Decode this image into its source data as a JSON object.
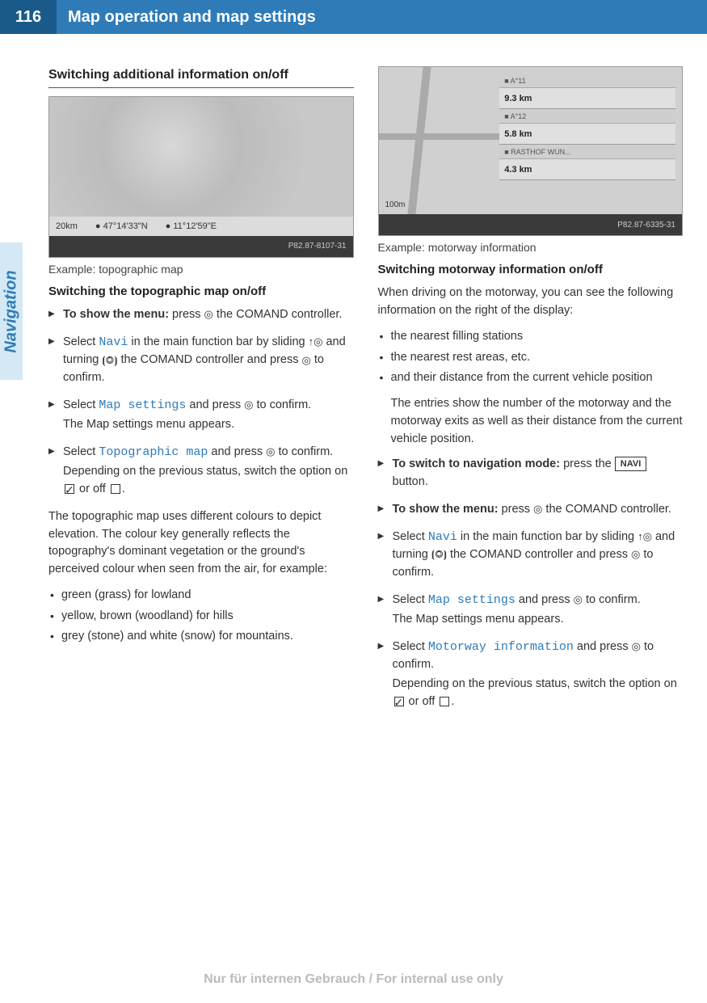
{
  "header": {
    "page_number": "116",
    "title": "Map operation and map settings"
  },
  "side_tab": "Navigation",
  "left": {
    "section_title": "Switching additional information on/off",
    "figure": {
      "coords_left": "● 47°14'33\"N",
      "coords_right": "● 11°12'59\"E",
      "scale": "20km",
      "id_label": "P82.87-8107-31"
    },
    "caption": "Example: topographic map",
    "sub_title": "Switching the topographic map on/off",
    "steps": [
      {
        "html": "<b>To show the menu:</b> press <span class='sym'>◎</span> the COMAND controller."
      },
      {
        "html": "Select <span class='cmd'>Navi</span> in the main function bar by sliding <span class='sym'>↑◎</span> and turning <span class='sym'>⦗◎⦘</span> the COMAND controller and press <span class='sym'>◎</span> to confirm."
      },
      {
        "html": "Select <span class='cmd'>Map settings</span> and press <span class='sym'>◎</span> to confirm.<span class='sub-line'>The Map settings menu appears.</span>"
      },
      {
        "html": "Select <span class='cmd'>Topographic map</span> and press <span class='sym'>◎</span> to confirm.<span class='sub-line'>Depending on the previous status, switch the option on <span class='box checked'></span> or off <span class='box'></span>.</span>"
      }
    ],
    "body_text": "The topographic map uses different colours to depict elevation. The colour key generally reflects the topography's dominant vegetation or the ground's perceived colour when seen from the air, for example:",
    "bullets": [
      "green (grass) for lowland",
      "yellow, brown (woodland) for hills",
      "grey (stone) and white (snow) for mountains."
    ]
  },
  "right": {
    "figure": {
      "rows": [
        {
          "label": "A°11",
          "dist": "9.3 km"
        },
        {
          "label": "A°12",
          "dist": "5.8 km"
        },
        {
          "label": "RASTHOF WUN...",
          "dist": "4.3 km"
        }
      ],
      "scale": "100m",
      "id_label": "P82.87-6335-31"
    },
    "caption": "Example: motorway information",
    "sub_title": "Switching motorway information on/off",
    "intro": "When driving on the motorway, you can see the following information on the right of the display:",
    "bullets": [
      "the nearest filling stations",
      "the nearest rest areas, etc.",
      "and their distance from the current vehicle position"
    ],
    "bullets_trail": "The entries show the number of the motorway and the motorway exits as well as their distance from the current vehicle position.",
    "steps": [
      {
        "html": "<b>To switch to navigation mode:</b> press the <span class='btn-box'>NAVI</span> button."
      },
      {
        "html": "<b>To show the menu:</b> press <span class='sym'>◎</span> the COMAND controller."
      },
      {
        "html": "Select <span class='cmd'>Navi</span> in the main function bar by sliding <span class='sym'>↑◎</span> and turning <span class='sym'>⦗◎⦘</span> the COMAND controller and press <span class='sym'>◎</span> to confirm."
      },
      {
        "html": "Select <span class='cmd'>Map settings</span> and press <span class='sym'>◎</span> to confirm.<span class='sub-line'>The Map settings menu appears.</span>"
      },
      {
        "html": "Select <span class='cmd'>Motorway information</span> and press <span class='sym'>◎</span> to confirm.<span class='sub-line'>Depending on the previous status, switch the option on <span class='box checked'></span> or off <span class='box'></span>.</span>"
      }
    ]
  },
  "footer": "Nur für internen Gebrauch / For internal use only"
}
